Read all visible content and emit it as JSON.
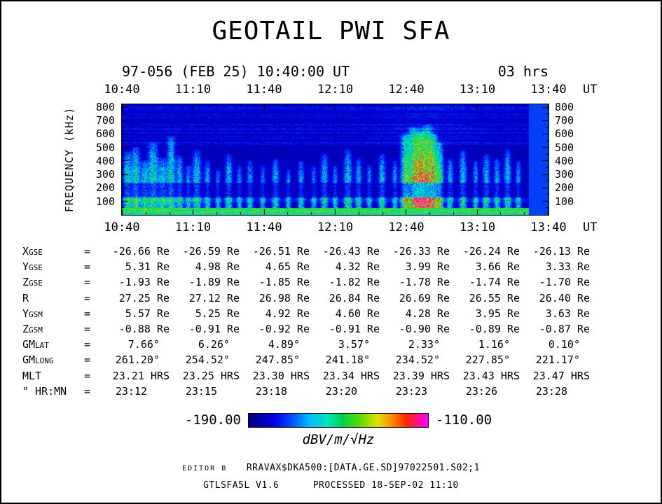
{
  "chart_data": {
    "type": "heatmap",
    "title": "GEOTAIL PWI SFA",
    "date_label": "97-056 (FEB 25) 10:40:00 UT",
    "duration_label": "03 hrs",
    "x_ticks": [
      "10:40",
      "11:10",
      "11:40",
      "12:10",
      "12:40",
      "13:10",
      "13:40"
    ],
    "x_unit": "UT",
    "time_range_minutes": 180,
    "ylabel": "FREQUENCY (kHz)",
    "y_ticks": [
      800,
      700,
      600,
      500,
      400,
      300,
      200,
      100
    ],
    "ylim": [
      0,
      820
    ],
    "colorbar": {
      "min_label": "-190.00",
      "max_label": "-110.00",
      "unit": "dBV/m/√Hz"
    },
    "features": {
      "background_level": 0.07,
      "nodata_right_fraction": 0.955,
      "nodata_level": 0.22,
      "bottom_band": {
        "fmax_khz": 55,
        "level": 0.55
      },
      "streaks": [
        {
          "x": 0.012,
          "w": 0.009,
          "a": 0.62,
          "fmax": 0.58
        },
        {
          "x": 0.032,
          "w": 0.01,
          "a": 0.65,
          "fmax": 0.62
        },
        {
          "x": 0.052,
          "w": 0.008,
          "a": 0.55,
          "fmax": 0.5
        },
        {
          "x": 0.072,
          "w": 0.012,
          "a": 0.65,
          "fmax": 0.66
        },
        {
          "x": 0.095,
          "w": 0.01,
          "a": 0.58,
          "fmax": 0.52
        },
        {
          "x": 0.115,
          "w": 0.009,
          "a": 0.62,
          "fmax": 0.72
        },
        {
          "x": 0.135,
          "w": 0.008,
          "a": 0.52,
          "fmax": 0.55
        },
        {
          "x": 0.155,
          "w": 0.006,
          "a": 0.46,
          "fmax": 0.46
        },
        {
          "x": 0.175,
          "w": 0.01,
          "a": 0.56,
          "fmax": 0.6
        },
        {
          "x": 0.2,
          "w": 0.007,
          "a": 0.46,
          "fmax": 0.5
        },
        {
          "x": 0.225,
          "w": 0.006,
          "a": 0.42,
          "fmax": 0.42
        },
        {
          "x": 0.25,
          "w": 0.008,
          "a": 0.52,
          "fmax": 0.56
        },
        {
          "x": 0.275,
          "w": 0.006,
          "a": 0.44,
          "fmax": 0.46
        },
        {
          "x": 0.3,
          "w": 0.007,
          "a": 0.46,
          "fmax": 0.5
        },
        {
          "x": 0.33,
          "w": 0.006,
          "a": 0.42,
          "fmax": 0.46
        },
        {
          "x": 0.36,
          "w": 0.008,
          "a": 0.5,
          "fmax": 0.52
        },
        {
          "x": 0.39,
          "w": 0.006,
          "a": 0.44,
          "fmax": 0.42
        },
        {
          "x": 0.42,
          "w": 0.007,
          "a": 0.47,
          "fmax": 0.5
        },
        {
          "x": 0.45,
          "w": 0.006,
          "a": 0.42,
          "fmax": 0.46
        },
        {
          "x": 0.475,
          "w": 0.008,
          "a": 0.52,
          "fmax": 0.56
        },
        {
          "x": 0.5,
          "w": 0.006,
          "a": 0.44,
          "fmax": 0.46
        },
        {
          "x": 0.53,
          "w": 0.009,
          "a": 0.56,
          "fmax": 0.6
        },
        {
          "x": 0.555,
          "w": 0.007,
          "a": 0.5,
          "fmax": 0.52
        },
        {
          "x": 0.58,
          "w": 0.006,
          "a": 0.44,
          "fmax": 0.46
        },
        {
          "x": 0.61,
          "w": 0.008,
          "a": 0.52,
          "fmax": 0.56
        },
        {
          "x": 0.64,
          "w": 0.006,
          "a": 0.46,
          "fmax": 0.5
        },
        {
          "x": 0.665,
          "w": 0.01,
          "a": 0.82,
          "fmax": 0.74
        },
        {
          "x": 0.685,
          "w": 0.012,
          "a": 0.92,
          "fmax": 0.8
        },
        {
          "x": 0.7,
          "w": 0.01,
          "a": 0.86,
          "fmax": 0.76
        },
        {
          "x": 0.715,
          "w": 0.012,
          "a": 0.9,
          "fmax": 0.82
        },
        {
          "x": 0.73,
          "w": 0.01,
          "a": 0.84,
          "fmax": 0.74
        },
        {
          "x": 0.745,
          "w": 0.009,
          "a": 0.72,
          "fmax": 0.66
        },
        {
          "x": 0.77,
          "w": 0.007,
          "a": 0.52,
          "fmax": 0.52
        },
        {
          "x": 0.8,
          "w": 0.008,
          "a": 0.56,
          "fmax": 0.6
        },
        {
          "x": 0.83,
          "w": 0.006,
          "a": 0.46,
          "fmax": 0.5
        },
        {
          "x": 0.855,
          "w": 0.008,
          "a": 0.52,
          "fmax": 0.56
        },
        {
          "x": 0.88,
          "w": 0.007,
          "a": 0.5,
          "fmax": 0.52
        },
        {
          "x": 0.905,
          "w": 0.008,
          "a": 0.54,
          "fmax": 0.6
        },
        {
          "x": 0.93,
          "w": 0.006,
          "a": 0.46,
          "fmax": 0.5
        }
      ]
    }
  },
  "table": {
    "eq": "=",
    "rows": [
      {
        "label": "X",
        "sub": "GSE",
        "values": [
          "-26.66 Re",
          "-26.59 Re",
          "-26.51 Re",
          "-26.43 Re",
          "-26.33 Re",
          "-26.24 Re",
          "-26.13 Re"
        ]
      },
      {
        "label": "Y",
        "sub": "GSE",
        "values": [
          "5.31 Re",
          "4.98 Re",
          "4.65 Re",
          "4.32 Re",
          "3.99 Re",
          "3.66 Re",
          "3.33 Re"
        ]
      },
      {
        "label": "Z",
        "sub": "GSE",
        "values": [
          "-1.93 Re",
          "-1.89 Re",
          "-1.85 Re",
          "-1.82 Re",
          "-1.78 Re",
          "-1.74 Re",
          "-1.70 Re"
        ]
      },
      {
        "label": "R",
        "sub": "",
        "values": [
          "27.25 Re",
          "27.12 Re",
          "26.98 Re",
          "26.84 Re",
          "26.69 Re",
          "26.55 Re",
          "26.40 Re"
        ]
      },
      {
        "label": "Y",
        "sub": "GSM",
        "values": [
          "5.57 Re",
          "5.25 Re",
          "4.92 Re",
          "4.60 Re",
          "4.28 Re",
          "3.95 Re",
          "3.63 Re"
        ]
      },
      {
        "label": "Z",
        "sub": "GSM",
        "values": [
          "-0.88 Re",
          "-0.91 Re",
          "-0.92 Re",
          "-0.91 Re",
          "-0.90 Re",
          "-0.89 Re",
          "-0.87 Re"
        ]
      },
      {
        "label": "GM",
        "sub": "LAT",
        "values": [
          "7.66°",
          "6.26°",
          "4.89°",
          "3.57°",
          "2.33°",
          "1.16°",
          "0.10°"
        ]
      },
      {
        "label": "GM",
        "sub": "LONG",
        "values": [
          "261.20°",
          "254.52°",
          "247.85°",
          "241.18°",
          "234.52°",
          "227.85°",
          "221.17°"
        ]
      },
      {
        "label": "MLT",
        "sub": "",
        "values": [
          "23.21 HRS",
          "23.25 HRS",
          "23.30 HRS",
          "23.34 HRS",
          "23.39 HRS",
          "23.43 HRS",
          "23.47 HRS"
        ]
      },
      {
        "label": "\" HR:MN",
        "sub": "",
        "values": [
          "23:12",
          "23:15",
          "23:18",
          "23:20",
          "23:23",
          "23:26",
          "23:28"
        ]
      }
    ]
  },
  "footer": {
    "editor": "EDITOR B",
    "file": "RRAVAX$DKA500:[DATA.GE.SD]97022501.S02;1",
    "program": "GTLSFA5L V1.6",
    "processed": "PROCESSED 18-SEP-02  11:10"
  }
}
